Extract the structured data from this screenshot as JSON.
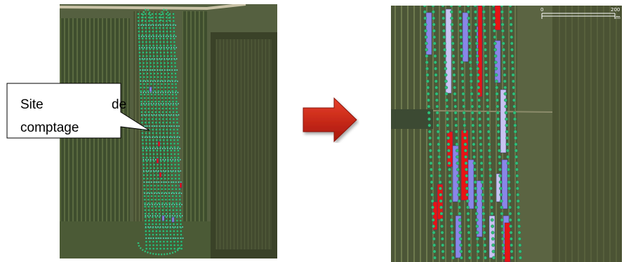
{
  "callout": {
    "line1_word1": "Site",
    "line1_word2": "de",
    "line2": "comptage"
  },
  "scale_bar": {
    "start_label": "0",
    "end_label": "200",
    "unit": "m"
  },
  "colors": {
    "tree_marker": "#2fbf7a",
    "sample_purple": "#8a86e8",
    "sample_red": "#e81414",
    "sample_light": "#c9c4f2",
    "arrow_red": "#c61a0c",
    "field_dark": "#3c4a2c"
  },
  "icons": {
    "transition_arrow": "right-arrow-icon"
  }
}
